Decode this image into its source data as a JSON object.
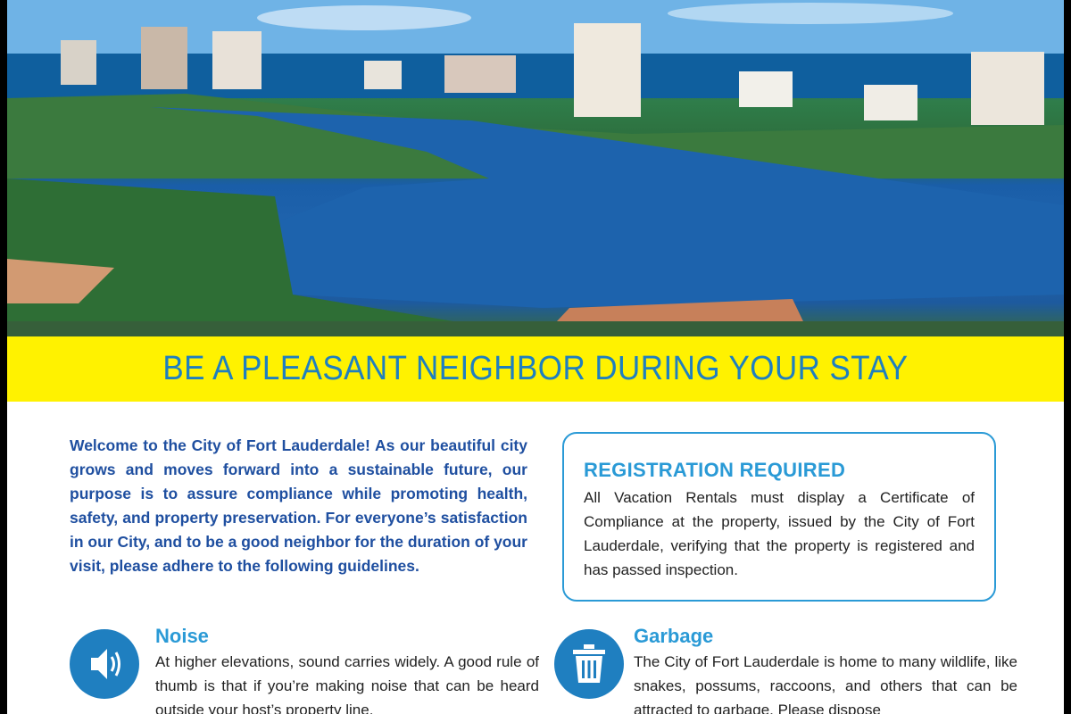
{
  "banner": {
    "title": "BE A PLEASANT NEIGHBOR DURING YOUR STAY",
    "background": "#fff200",
    "color": "#1f7fc0"
  },
  "intro": "Welcome to the City of Fort Lauderdale! As our beautiful city grows and moves forward into a sustainable future, our purpose is to assure compliance while promoting health, safety, and property preservation. For everyone’s satisfaction in our City, and to be a good neighbor for the duration of your visit, please adhere to the following guidelines.",
  "registration": {
    "title": "REGISTRATION REQUIRED",
    "text": "All Vacation Rentals must display a Certificate of Compliance at the property, issued by the City of Fort Lauderdale, verifying that the property is registered and has passed inspection."
  },
  "sections": [
    {
      "icon": "speaker-icon",
      "title": "Noise",
      "text": "At higher elevations, sound carries widely. A good rule of thumb is that if you’re making noise that can be heard outside your host’s property line."
    },
    {
      "icon": "trash-can-icon",
      "title": "Garbage",
      "text": "The City of Fort Lauderdale is home to many wildlife, like snakes, possums, raccoons, and others that can be attracted to garbage. Please dispose"
    }
  ]
}
